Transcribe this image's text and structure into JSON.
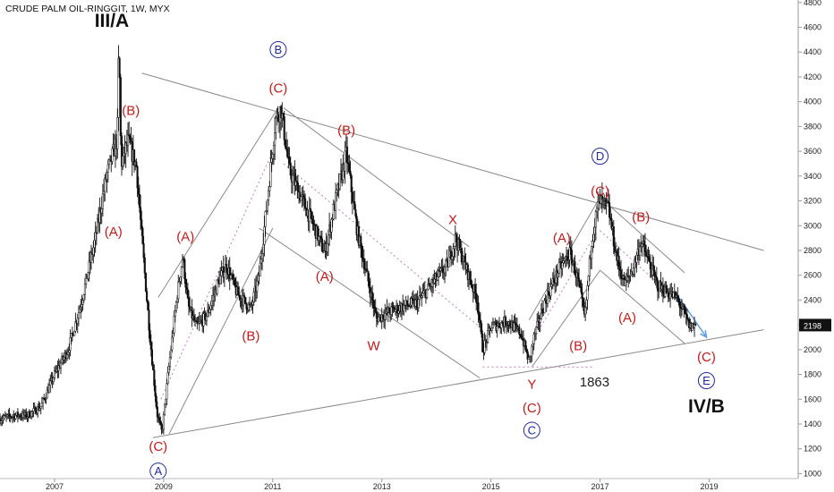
{
  "title": "CRUDE PALM OIL-RINGGIT, 1W, MYX",
  "current_price": "2198",
  "colors": {
    "candle": "#111111",
    "trendline": "#8a8a8a",
    "wave_label": "#c41a1a",
    "circle_label": "#1f2a9e",
    "dashed": "#c77ac7",
    "price_box": "#111111",
    "arrow": "#5aa0e0"
  },
  "chart_data": {
    "type": "candlestick",
    "title": "CRUDE PALM OIL-RINGGIT, 1W, MYX",
    "timeframe": "1W",
    "x_ticks": [
      "2007",
      "2009",
      "2011",
      "2013",
      "2015",
      "2017",
      "2019"
    ],
    "y_ticks": [
      "1000",
      "1200",
      "1400",
      "1600",
      "1800",
      "2000",
      "2200",
      "2400",
      "2600",
      "2800",
      "3000",
      "3200",
      "3400",
      "3600",
      "3800",
      "4000",
      "4200",
      "4400",
      "4600",
      "4800"
    ],
    "xlim": [
      2006.0,
      2020.6
    ],
    "ylim": [
      960,
      4820
    ],
    "y_axis_side": "right",
    "last_price": 2198,
    "price_path": [
      [
        2006.0,
        1440
      ],
      [
        2006.25,
        1470
      ],
      [
        2006.5,
        1470
      ],
      [
        2006.75,
        1540
      ],
      [
        2007.0,
        1800
      ],
      [
        2007.25,
        2000
      ],
      [
        2007.5,
        2400
      ],
      [
        2007.75,
        2900
      ],
      [
        2007.95,
        3400
      ],
      [
        2008.15,
        3700
      ],
      [
        2008.18,
        4480
      ],
      [
        2008.22,
        3500
      ],
      [
        2008.35,
        3680
      ],
      [
        2008.5,
        3480
      ],
      [
        2008.6,
        2900
      ],
      [
        2008.75,
        2100
      ],
      [
        2008.88,
        1480
      ],
      [
        2008.97,
        1330
      ],
      [
        2009.08,
        1800
      ],
      [
        2009.25,
        2450
      ],
      [
        2009.35,
        2750
      ],
      [
        2009.45,
        2350
      ],
      [
        2009.6,
        2180
      ],
      [
        2009.8,
        2280
      ],
      [
        2010.0,
        2550
      ],
      [
        2010.15,
        2680
      ],
      [
        2010.35,
        2450
      ],
      [
        2010.6,
        2330
      ],
      [
        2010.75,
        2600
      ],
      [
        2010.9,
        3200
      ],
      [
        2011.05,
        3850
      ],
      [
        2011.15,
        3950
      ],
      [
        2011.3,
        3450
      ],
      [
        2011.55,
        3200
      ],
      [
        2011.75,
        3000
      ],
      [
        2011.95,
        2780
      ],
      [
        2012.15,
        3200
      ],
      [
        2012.35,
        3580
      ],
      [
        2012.55,
        2950
      ],
      [
        2012.75,
        2550
      ],
      [
        2012.9,
        2250
      ],
      [
        2013.1,
        2300
      ],
      [
        2013.4,
        2350
      ],
      [
        2013.65,
        2380
      ],
      [
        2013.9,
        2520
      ],
      [
        2014.2,
        2680
      ],
      [
        2014.35,
        2900
      ],
      [
        2014.55,
        2650
      ],
      [
        2014.75,
        2400
      ],
      [
        2014.85,
        2000
      ],
      [
        2015.0,
        2180
      ],
      [
        2015.3,
        2230
      ],
      [
        2015.55,
        2130
      ],
      [
        2015.7,
        1900
      ],
      [
        2015.8,
        2120
      ],
      [
        2016.0,
        2400
      ],
      [
        2016.25,
        2650
      ],
      [
        2016.45,
        2780
      ],
      [
        2016.6,
        2550
      ],
      [
        2016.72,
        2250
      ],
      [
        2016.85,
        2900
      ],
      [
        2016.98,
        3200
      ],
      [
        2017.15,
        3150
      ],
      [
        2017.3,
        2750
      ],
      [
        2017.45,
        2520
      ],
      [
        2017.6,
        2650
      ],
      [
        2017.75,
        2870
      ],
      [
        2017.9,
        2700
      ],
      [
        2018.05,
        2520
      ],
      [
        2018.2,
        2470
      ],
      [
        2018.4,
        2420
      ],
      [
        2018.55,
        2280
      ],
      [
        2018.65,
        2180
      ],
      [
        2018.75,
        2198
      ]
    ],
    "wave_labels": [
      {
        "text": "III/A",
        "x": 2008.05,
        "y": 4640,
        "style": "big"
      },
      {
        "text": "(B)",
        "x": 2008.4,
        "y": 3930,
        "style": "red"
      },
      {
        "text": "(A)",
        "x": 2008.08,
        "y": 2950,
        "style": "red"
      },
      {
        "text": "(C)",
        "x": 2008.9,
        "y": 1220,
        "style": "red"
      },
      {
        "text": "A",
        "x": 2008.9,
        "y": 1020,
        "style": "circle"
      },
      {
        "text": "(A)",
        "x": 2009.4,
        "y": 2910,
        "style": "red"
      },
      {
        "text": "(B)",
        "x": 2010.6,
        "y": 2110,
        "style": "red"
      },
      {
        "text": "B",
        "x": 2011.1,
        "y": 4420,
        "style": "circle"
      },
      {
        "text": "(C)",
        "x": 2011.1,
        "y": 4110,
        "style": "red"
      },
      {
        "text": "(B)",
        "x": 2012.35,
        "y": 3770,
        "style": "red"
      },
      {
        "text": "(A)",
        "x": 2011.95,
        "y": 2590,
        "style": "red"
      },
      {
        "text": "W",
        "x": 2012.85,
        "y": 2030,
        "style": "red"
      },
      {
        "text": "X",
        "x": 2014.3,
        "y": 3050,
        "style": "red"
      },
      {
        "text": "Y",
        "x": 2015.75,
        "y": 1720,
        "style": "red"
      },
      {
        "text": "(C)",
        "x": 2015.75,
        "y": 1530,
        "style": "red"
      },
      {
        "text": "C",
        "x": 2015.75,
        "y": 1350,
        "style": "circle"
      },
      {
        "text": "(A)",
        "x": 2016.3,
        "y": 2900,
        "style": "red"
      },
      {
        "text": "(B)",
        "x": 2016.6,
        "y": 2030,
        "style": "red"
      },
      {
        "text": "D",
        "x": 2017.0,
        "y": 3560,
        "style": "circle"
      },
      {
        "text": "(C)",
        "x": 2017.0,
        "y": 3280,
        "style": "red"
      },
      {
        "text": "(B)",
        "x": 2017.75,
        "y": 3070,
        "style": "red"
      },
      {
        "text": "(A)",
        "x": 2017.5,
        "y": 2260,
        "style": "red"
      },
      {
        "text": "(C)",
        "x": 2018.95,
        "y": 1940,
        "style": "red"
      },
      {
        "text": "E",
        "x": 2018.95,
        "y": 1750,
        "style": "circle"
      },
      {
        "text": "IV/B",
        "x": 2018.95,
        "y": 1530,
        "style": "big"
      },
      {
        "text": "1863",
        "x": 2016.9,
        "y": 1740,
        "style": "plain"
      }
    ],
    "trendlines": [
      {
        "from": [
          2008.6,
          4230
        ],
        "to": [
          2020.0,
          2800
        ]
      },
      {
        "from": [
          2008.8,
          1290
        ],
        "to": [
          2020.0,
          2160
        ]
      },
      {
        "from": [
          2011.2,
          3950
        ],
        "to": [
          2014.6,
          2830
        ]
      },
      {
        "from": [
          2010.75,
          2980
        ],
        "to": [
          2014.8,
          1770
        ]
      },
      {
        "from": [
          2008.9,
          2420
        ],
        "to": [
          2011.1,
          3950
        ]
      },
      {
        "from": [
          2009.1,
          1320
        ],
        "to": [
          2011.0,
          2980
        ]
      },
      {
        "from": [
          2015.7,
          2240
        ],
        "to": [
          2017.0,
          3230
        ]
      },
      {
        "from": [
          2015.75,
          1860
        ],
        "to": [
          2017.0,
          2640
        ]
      },
      {
        "from": [
          2017.0,
          3230
        ],
        "to": [
          2018.55,
          2620
        ]
      },
      {
        "from": [
          2017.0,
          2640
        ],
        "to": [
          2018.55,
          2050
        ]
      }
    ],
    "dashed_lines": [
      {
        "from": [
          2008.95,
          1600
        ],
        "to": [
          2010.95,
          3550
        ]
      },
      {
        "from": [
          2011.2,
          3500
        ],
        "to": [
          2014.8,
          2180
        ]
      },
      {
        "from": [
          2015.75,
          2060
        ],
        "to": [
          2016.95,
          2960
        ]
      },
      {
        "from": [
          2017.0,
          2960
        ],
        "to": [
          2018.6,
          2320
        ]
      },
      {
        "from": [
          2014.85,
          1860
        ],
        "to": [
          2016.9,
          1860
        ]
      }
    ],
    "arrow": {
      "from": [
        2018.4,
        2450
      ],
      "to": [
        2018.95,
        2100
      ]
    }
  }
}
